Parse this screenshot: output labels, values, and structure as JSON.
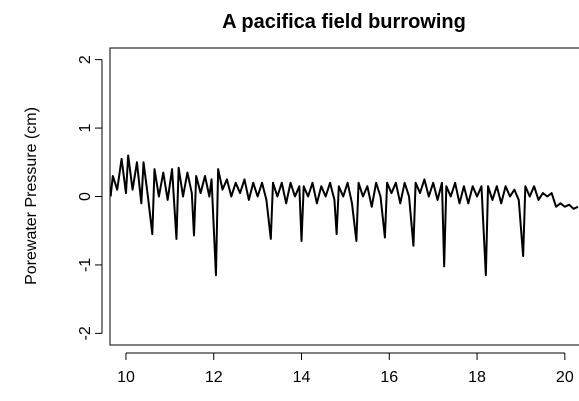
{
  "chart_data": {
    "type": "line",
    "title": "A pacifica field burrowing",
    "y_label": "Porewater Pressure (cm)",
    "x": [
      9.65,
      9.7,
      9.8,
      9.9,
      10.0,
      10.05,
      10.15,
      10.25,
      10.35,
      10.4,
      10.5,
      10.6,
      10.65,
      10.75,
      10.85,
      10.95,
      11.05,
      11.15,
      11.2,
      11.3,
      11.4,
      11.5,
      11.55,
      11.6,
      11.7,
      11.8,
      11.9,
      11.95,
      12.05,
      12.1,
      12.2,
      12.3,
      12.4,
      12.5,
      12.6,
      12.7,
      12.8,
      12.9,
      13.0,
      13.1,
      13.2,
      13.3,
      13.35,
      13.45,
      13.55,
      13.65,
      13.75,
      13.85,
      13.95,
      14.0,
      14.05,
      14.15,
      14.25,
      14.35,
      14.45,
      14.55,
      14.65,
      14.75,
      14.8,
      14.85,
      14.95,
      15.05,
      15.15,
      15.25,
      15.3,
      15.4,
      15.5,
      15.6,
      15.7,
      15.8,
      15.9,
      15.95,
      16.05,
      16.15,
      16.25,
      16.35,
      16.45,
      16.55,
      16.6,
      16.7,
      16.8,
      16.9,
      17.0,
      17.1,
      17.2,
      17.25,
      17.3,
      17.4,
      17.5,
      17.6,
      17.7,
      17.8,
      17.9,
      18.0,
      18.1,
      18.2,
      18.25,
      18.35,
      18.45,
      18.55,
      18.65,
      18.75,
      18.85,
      18.95,
      19.05,
      19.1,
      19.2,
      19.3,
      19.4,
      19.5,
      19.6,
      19.7,
      19.8,
      19.9,
      20.0,
      20.1,
      20.2,
      20.3
    ],
    "series": [
      {
        "color": "#000000",
        "values": [
          0.0,
          0.3,
          0.1,
          0.55,
          0.05,
          0.6,
          0.1,
          0.5,
          -0.1,
          0.5,
          0.0,
          -0.55,
          0.4,
          0.0,
          0.35,
          -0.05,
          0.4,
          -0.62,
          0.42,
          0.0,
          0.35,
          0.05,
          -0.57,
          0.3,
          0.05,
          0.3,
          0.0,
          0.25,
          -1.15,
          0.4,
          0.1,
          0.25,
          0.0,
          0.2,
          0.05,
          0.25,
          -0.05,
          0.2,
          0.0,
          0.2,
          -0.05,
          -0.62,
          0.2,
          0.0,
          0.2,
          -0.1,
          0.2,
          0.0,
          0.15,
          -0.65,
          0.15,
          0.0,
          0.2,
          -0.1,
          0.15,
          0.0,
          0.2,
          -0.05,
          -0.55,
          0.15,
          0.0,
          0.2,
          -0.1,
          -0.65,
          0.2,
          0.0,
          0.15,
          -0.15,
          0.2,
          0.0,
          -0.6,
          0.2,
          0.05,
          0.2,
          -0.1,
          0.2,
          0.0,
          -0.72,
          0.2,
          0.05,
          0.25,
          0.0,
          0.2,
          -0.05,
          0.2,
          -1.02,
          0.15,
          0.0,
          0.2,
          -0.1,
          0.15,
          -0.1,
          0.15,
          0.0,
          0.15,
          -1.15,
          0.15,
          -0.05,
          0.15,
          -0.1,
          0.15,
          0.0,
          0.1,
          -0.05,
          -0.87,
          0.15,
          0.0,
          0.15,
          -0.05,
          0.05,
          0.0,
          0.05,
          -0.15,
          -0.1,
          -0.15,
          -0.12,
          -0.18,
          -0.15
        ]
      }
    ],
    "xlim": [
      9.636,
      20.3
    ],
    "ylim": [
      -2.17,
      2.17
    ],
    "xticks": [
      10,
      12,
      14,
      16,
      18,
      20
    ],
    "yticks": [
      -2,
      -1,
      0,
      1,
      2
    ],
    "grid": false
  }
}
